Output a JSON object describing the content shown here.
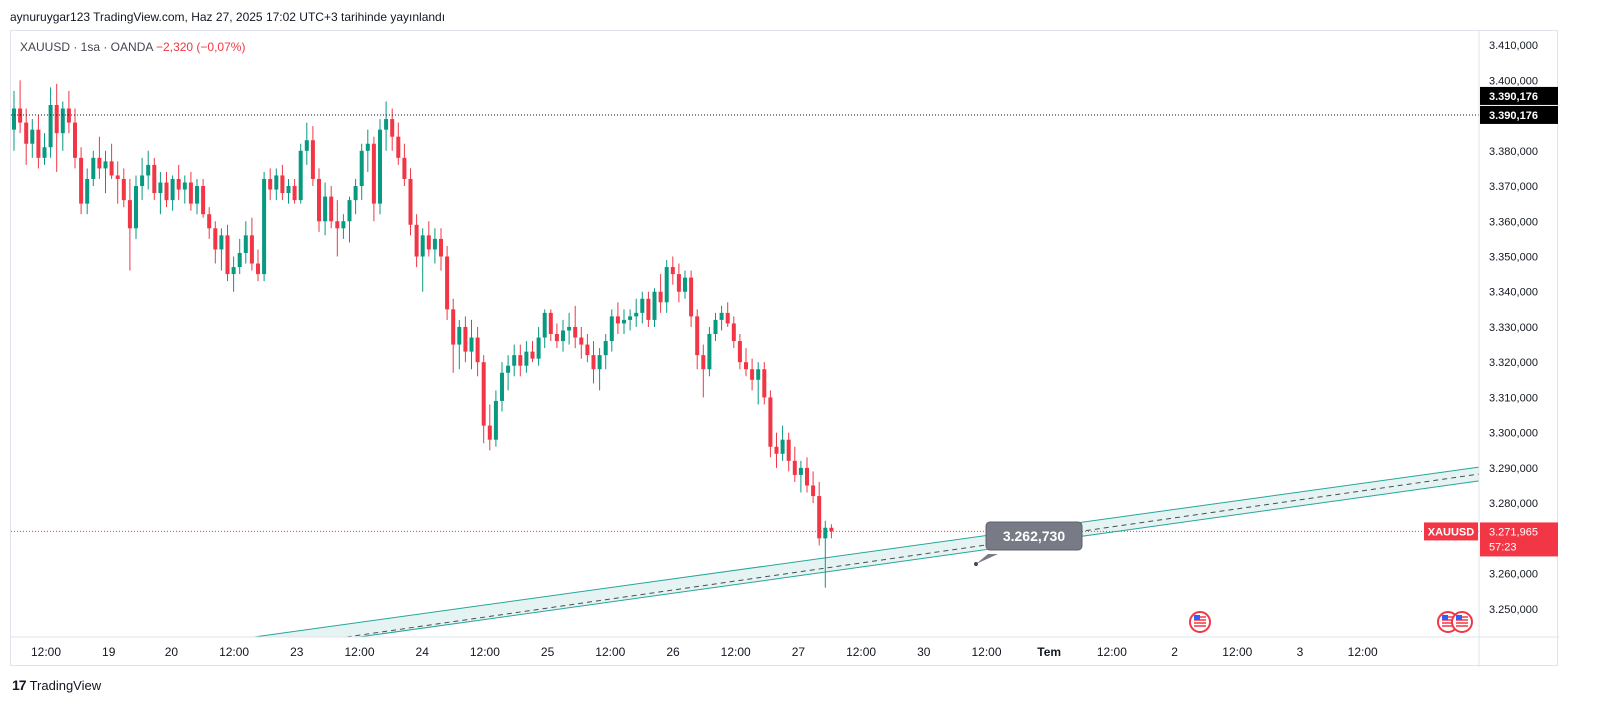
{
  "header": {
    "text": "aynuruygar123 TradingView.com, Haz 27, 2025 17:02 UTC+3 tarihinde yayınlandı"
  },
  "symbol": {
    "prefix": "XAUUSD · 1sa · OANDA",
    "change": "−2,320 (−0,07%)"
  },
  "footer": {
    "logo_mark": "17",
    "logo_text": "TradingView"
  },
  "colors": {
    "up": "#089981",
    "down": "#f23645",
    "channel": "#26a69a",
    "callout": "#787b86"
  },
  "chart_data": {
    "type": "candlestick",
    "symbol": "XAUUSD",
    "interval": "1sa",
    "source": "OANDA",
    "ylim": [
      3242,
      3414
    ],
    "y_ticks": [
      "3.250,000",
      "3.260,000",
      "3.270,000",
      "3.280,000",
      "3.290,000",
      "3.300,000",
      "3.310,000",
      "3.320,000",
      "3.330,000",
      "3.340,000",
      "3.350,000",
      "3.360,000",
      "3.370,000",
      "3.380,000",
      "3.390,000",
      "3.400,000",
      "3.410,000"
    ],
    "y_tick_values": [
      3250,
      3260,
      3270,
      3280,
      3290,
      3300,
      3310,
      3320,
      3330,
      3340,
      3350,
      3360,
      3370,
      3380,
      3390,
      3400,
      3410
    ],
    "x_ticks": [
      "12:00",
      "19",
      "20",
      "12:00",
      "23",
      "12:00",
      "24",
      "12:00",
      "25",
      "12:00",
      "26",
      "12:00",
      "27",
      "12:00",
      "30",
      "12:00",
      "Tem",
      "12:00",
      "2",
      "12:00",
      "3",
      "12:00"
    ],
    "x_tick_bold": [
      false,
      false,
      false,
      false,
      false,
      false,
      false,
      false,
      false,
      false,
      false,
      false,
      false,
      false,
      false,
      false,
      true,
      false,
      false,
      false,
      false,
      false
    ],
    "high_line": {
      "value": 3390.176,
      "labels": [
        "3.390,176",
        "3.390,176"
      ]
    },
    "last_price": {
      "symbol": "XAUUSD",
      "value": 3271.965,
      "label": "3.271,965",
      "countdown": "57:23"
    },
    "annotation": {
      "label": "3.262,730",
      "value": 3262.73
    },
    "channel": {
      "upper_start": 3242.0,
      "upper_end": 3290.2,
      "lower_end": 3286.3,
      "width": 2.0
    },
    "bars": [
      {
        "o": 3386,
        "h": 3397,
        "l": 3380,
        "c": 3392
      },
      {
        "o": 3392,
        "h": 3400,
        "l": 3385,
        "c": 3388
      },
      {
        "o": 3388,
        "h": 3392,
        "l": 3376,
        "c": 3382
      },
      {
        "o": 3382,
        "h": 3389,
        "l": 3378,
        "c": 3386
      },
      {
        "o": 3386,
        "h": 3390,
        "l": 3375,
        "c": 3378
      },
      {
        "o": 3378,
        "h": 3385,
        "l": 3376,
        "c": 3381
      },
      {
        "o": 3381,
        "h": 3398,
        "l": 3378,
        "c": 3393
      },
      {
        "o": 3393,
        "h": 3399,
        "l": 3374,
        "c": 3385
      },
      {
        "o": 3385,
        "h": 3394,
        "l": 3380,
        "c": 3392
      },
      {
        "o": 3392,
        "h": 3397,
        "l": 3385,
        "c": 3388
      },
      {
        "o": 3388,
        "h": 3392,
        "l": 3375,
        "c": 3378
      },
      {
        "o": 3378,
        "h": 3381,
        "l": 3362,
        "c": 3365
      },
      {
        "o": 3365,
        "h": 3375,
        "l": 3362,
        "c": 3372
      },
      {
        "o": 3372,
        "h": 3380,
        "l": 3370,
        "c": 3378
      },
      {
        "o": 3378,
        "h": 3384,
        "l": 3372,
        "c": 3375
      },
      {
        "o": 3375,
        "h": 3380,
        "l": 3368,
        "c": 3377
      },
      {
        "o": 3377,
        "h": 3382,
        "l": 3372,
        "c": 3373
      },
      {
        "o": 3373,
        "h": 3377,
        "l": 3365,
        "c": 3372
      },
      {
        "o": 3372,
        "h": 3375,
        "l": 3364,
        "c": 3366
      },
      {
        "o": 3366,
        "h": 3372,
        "l": 3346,
        "c": 3358
      },
      {
        "o": 3358,
        "h": 3373,
        "l": 3355,
        "c": 3370
      },
      {
        "o": 3370,
        "h": 3378,
        "l": 3366,
        "c": 3373
      },
      {
        "o": 3373,
        "h": 3380,
        "l": 3369,
        "c": 3376
      },
      {
        "o": 3376,
        "h": 3378,
        "l": 3366,
        "c": 3368
      },
      {
        "o": 3368,
        "h": 3374,
        "l": 3362,
        "c": 3371
      },
      {
        "o": 3371,
        "h": 3374,
        "l": 3364,
        "c": 3366
      },
      {
        "o": 3366,
        "h": 3373,
        "l": 3363,
        "c": 3372
      },
      {
        "o": 3372,
        "h": 3376,
        "l": 3366,
        "c": 3369
      },
      {
        "o": 3369,
        "h": 3373,
        "l": 3365,
        "c": 3371
      },
      {
        "o": 3371,
        "h": 3374,
        "l": 3363,
        "c": 3365
      },
      {
        "o": 3365,
        "h": 3372,
        "l": 3362,
        "c": 3370
      },
      {
        "o": 3370,
        "h": 3372,
        "l": 3361,
        "c": 3362
      },
      {
        "o": 3362,
        "h": 3364,
        "l": 3355,
        "c": 3358
      },
      {
        "o": 3358,
        "h": 3360,
        "l": 3348,
        "c": 3352
      },
      {
        "o": 3352,
        "h": 3358,
        "l": 3346,
        "c": 3356
      },
      {
        "o": 3356,
        "h": 3359,
        "l": 3343,
        "c": 3345
      },
      {
        "o": 3345,
        "h": 3350,
        "l": 3340,
        "c": 3347
      },
      {
        "o": 3347,
        "h": 3355,
        "l": 3345,
        "c": 3351
      },
      {
        "o": 3351,
        "h": 3360,
        "l": 3348,
        "c": 3356
      },
      {
        "o": 3356,
        "h": 3361,
        "l": 3346,
        "c": 3348
      },
      {
        "o": 3348,
        "h": 3352,
        "l": 3343,
        "c": 3345
      },
      {
        "o": 3345,
        "h": 3374,
        "l": 3343,
        "c": 3372
      },
      {
        "o": 3372,
        "h": 3375,
        "l": 3366,
        "c": 3369
      },
      {
        "o": 3369,
        "h": 3375,
        "l": 3366,
        "c": 3373
      },
      {
        "o": 3373,
        "h": 3376,
        "l": 3366,
        "c": 3368
      },
      {
        "o": 3368,
        "h": 3372,
        "l": 3365,
        "c": 3370
      },
      {
        "o": 3370,
        "h": 3372,
        "l": 3365,
        "c": 3366
      },
      {
        "o": 3366,
        "h": 3382,
        "l": 3365,
        "c": 3380
      },
      {
        "o": 3380,
        "h": 3388,
        "l": 3376,
        "c": 3383
      },
      {
        "o": 3383,
        "h": 3387,
        "l": 3370,
        "c": 3372
      },
      {
        "o": 3372,
        "h": 3375,
        "l": 3357,
        "c": 3360
      },
      {
        "o": 3360,
        "h": 3371,
        "l": 3356,
        "c": 3367
      },
      {
        "o": 3367,
        "h": 3370,
        "l": 3358,
        "c": 3360
      },
      {
        "o": 3360,
        "h": 3366,
        "l": 3350,
        "c": 3358
      },
      {
        "o": 3358,
        "h": 3362,
        "l": 3355,
        "c": 3360
      },
      {
        "o": 3360,
        "h": 3367,
        "l": 3354,
        "c": 3366
      },
      {
        "o": 3366,
        "h": 3372,
        "l": 3362,
        "c": 3370
      },
      {
        "o": 3370,
        "h": 3382,
        "l": 3366,
        "c": 3380
      },
      {
        "o": 3380,
        "h": 3386,
        "l": 3374,
        "c": 3382
      },
      {
        "o": 3382,
        "h": 3384,
        "l": 3360,
        "c": 3365
      },
      {
        "o": 3365,
        "h": 3389,
        "l": 3362,
        "c": 3386
      },
      {
        "o": 3386,
        "h": 3394,
        "l": 3380,
        "c": 3389
      },
      {
        "o": 3389,
        "h": 3392,
        "l": 3380,
        "c": 3384
      },
      {
        "o": 3384,
        "h": 3388,
        "l": 3376,
        "c": 3378
      },
      {
        "o": 3378,
        "h": 3382,
        "l": 3370,
        "c": 3372
      },
      {
        "o": 3372,
        "h": 3375,
        "l": 3356,
        "c": 3359
      },
      {
        "o": 3359,
        "h": 3362,
        "l": 3347,
        "c": 3350
      },
      {
        "o": 3350,
        "h": 3358,
        "l": 3340,
        "c": 3356
      },
      {
        "o": 3356,
        "h": 3360,
        "l": 3350,
        "c": 3352
      },
      {
        "o": 3352,
        "h": 3358,
        "l": 3348,
        "c": 3355
      },
      {
        "o": 3355,
        "h": 3358,
        "l": 3346,
        "c": 3350
      },
      {
        "o": 3350,
        "h": 3353,
        "l": 3332,
        "c": 3335
      },
      {
        "o": 3335,
        "h": 3338,
        "l": 3317,
        "c": 3325
      },
      {
        "o": 3325,
        "h": 3332,
        "l": 3318,
        "c": 3330
      },
      {
        "o": 3330,
        "h": 3333,
        "l": 3320,
        "c": 3323
      },
      {
        "o": 3323,
        "h": 3332,
        "l": 3318,
        "c": 3327
      },
      {
        "o": 3327,
        "h": 3330,
        "l": 3316,
        "c": 3320
      },
      {
        "o": 3320,
        "h": 3322,
        "l": 3297,
        "c": 3302
      },
      {
        "o": 3302,
        "h": 3308,
        "l": 3295,
        "c": 3298
      },
      {
        "o": 3298,
        "h": 3312,
        "l": 3296,
        "c": 3309
      },
      {
        "o": 3309,
        "h": 3320,
        "l": 3306,
        "c": 3317
      },
      {
        "o": 3317,
        "h": 3322,
        "l": 3312,
        "c": 3319
      },
      {
        "o": 3319,
        "h": 3325,
        "l": 3316,
        "c": 3322
      },
      {
        "o": 3322,
        "h": 3325,
        "l": 3316,
        "c": 3319
      },
      {
        "o": 3319,
        "h": 3326,
        "l": 3317,
        "c": 3323
      },
      {
        "o": 3323,
        "h": 3326,
        "l": 3320,
        "c": 3321
      },
      {
        "o": 3321,
        "h": 3330,
        "l": 3319,
        "c": 3327
      },
      {
        "o": 3327,
        "h": 3335,
        "l": 3324,
        "c": 3334
      },
      {
        "o": 3334,
        "h": 3335,
        "l": 3326,
        "c": 3328
      },
      {
        "o": 3328,
        "h": 3331,
        "l": 3324,
        "c": 3326
      },
      {
        "o": 3326,
        "h": 3332,
        "l": 3323,
        "c": 3329
      },
      {
        "o": 3329,
        "h": 3334,
        "l": 3325,
        "c": 3330
      },
      {
        "o": 3330,
        "h": 3336,
        "l": 3324,
        "c": 3327
      },
      {
        "o": 3327,
        "h": 3330,
        "l": 3321,
        "c": 3325
      },
      {
        "o": 3325,
        "h": 3328,
        "l": 3320,
        "c": 3322
      },
      {
        "o": 3322,
        "h": 3326,
        "l": 3314,
        "c": 3318
      },
      {
        "o": 3318,
        "h": 3324,
        "l": 3312,
        "c": 3322
      },
      {
        "o": 3322,
        "h": 3328,
        "l": 3318,
        "c": 3326
      },
      {
        "o": 3326,
        "h": 3335,
        "l": 3323,
        "c": 3333
      },
      {
        "o": 3333,
        "h": 3337,
        "l": 3328,
        "c": 3331
      },
      {
        "o": 3331,
        "h": 3335,
        "l": 3328,
        "c": 3332
      },
      {
        "o": 3332,
        "h": 3335,
        "l": 3329,
        "c": 3333
      },
      {
        "o": 3333,
        "h": 3338,
        "l": 3330,
        "c": 3334
      },
      {
        "o": 3334,
        "h": 3340,
        "l": 3331,
        "c": 3338
      },
      {
        "o": 3338,
        "h": 3340,
        "l": 3330,
        "c": 3332
      },
      {
        "o": 3332,
        "h": 3341,
        "l": 3330,
        "c": 3340
      },
      {
        "o": 3340,
        "h": 3345,
        "l": 3334,
        "c": 3337
      },
      {
        "o": 3337,
        "h": 3349,
        "l": 3334,
        "c": 3347
      },
      {
        "o": 3347,
        "h": 3350,
        "l": 3342,
        "c": 3345
      },
      {
        "o": 3345,
        "h": 3348,
        "l": 3337,
        "c": 3340
      },
      {
        "o": 3340,
        "h": 3346,
        "l": 3338,
        "c": 3344
      },
      {
        "o": 3344,
        "h": 3346,
        "l": 3330,
        "c": 3333
      },
      {
        "o": 3333,
        "h": 3335,
        "l": 3318,
        "c": 3322
      },
      {
        "o": 3322,
        "h": 3325,
        "l": 3310,
        "c": 3318
      },
      {
        "o": 3318,
        "h": 3330,
        "l": 3316,
        "c": 3328
      },
      {
        "o": 3328,
        "h": 3334,
        "l": 3326,
        "c": 3332
      },
      {
        "o": 3332,
        "h": 3336,
        "l": 3329,
        "c": 3334
      },
      {
        "o": 3334,
        "h": 3337,
        "l": 3330,
        "c": 3331
      },
      {
        "o": 3331,
        "h": 3333,
        "l": 3324,
        "c": 3326
      },
      {
        "o": 3326,
        "h": 3328,
        "l": 3318,
        "c": 3320
      },
      {
        "o": 3320,
        "h": 3324,
        "l": 3316,
        "c": 3318
      },
      {
        "o": 3318,
        "h": 3321,
        "l": 3312,
        "c": 3315
      },
      {
        "o": 3315,
        "h": 3320,
        "l": 3308,
        "c": 3318
      },
      {
        "o": 3318,
        "h": 3320,
        "l": 3308,
        "c": 3310
      },
      {
        "o": 3310,
        "h": 3312,
        "l": 3293,
        "c": 3296
      },
      {
        "o": 3296,
        "h": 3300,
        "l": 3290,
        "c": 3294
      },
      {
        "o": 3294,
        "h": 3302,
        "l": 3292,
        "c": 3298
      },
      {
        "o": 3298,
        "h": 3300,
        "l": 3289,
        "c": 3292
      },
      {
        "o": 3292,
        "h": 3296,
        "l": 3286,
        "c": 3288
      },
      {
        "o": 3288,
        "h": 3292,
        "l": 3283,
        "c": 3290
      },
      {
        "o": 3290,
        "h": 3293,
        "l": 3283,
        "c": 3285
      },
      {
        "o": 3285,
        "h": 3289,
        "l": 3280,
        "c": 3282
      },
      {
        "o": 3282,
        "h": 3286,
        "l": 3268,
        "c": 3270
      },
      {
        "o": 3270,
        "h": 3275,
        "l": 3256,
        "c": 3273
      },
      {
        "o": 3273,
        "h": 3274,
        "l": 3270,
        "c": 3272
      }
    ]
  }
}
